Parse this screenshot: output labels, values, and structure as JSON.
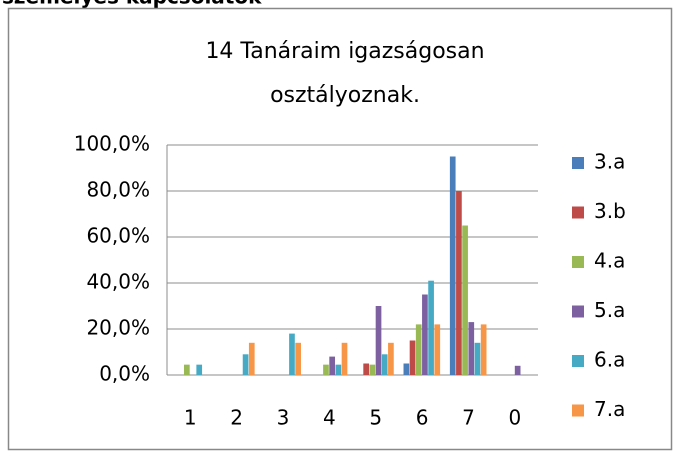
{
  "header": "személyes kapcsolatok",
  "chart_data": {
    "type": "bar",
    "title": [
      "14 Tanáraim igazságosan",
      "osztályoznak."
    ],
    "categories": [
      "1",
      "2",
      "3",
      "4",
      "5",
      "6",
      "7",
      "0"
    ],
    "series": [
      {
        "name": "3.a",
        "color": "#4a7ebb",
        "values": [
          0,
          0,
          0,
          0,
          0,
          5,
          95,
          0
        ]
      },
      {
        "name": "3.b",
        "color": "#be4b48",
        "values": [
          0,
          0,
          0,
          0,
          5,
          15,
          80,
          0
        ]
      },
      {
        "name": "4.a",
        "color": "#98b954",
        "values": [
          4.5,
          0,
          0,
          4.5,
          4.5,
          22,
          65,
          0
        ]
      },
      {
        "name": "5.a",
        "color": "#7d60a0",
        "values": [
          0,
          0,
          0,
          8,
          30,
          35,
          23,
          4
        ]
      },
      {
        "name": "6.a",
        "color": "#46aac5",
        "values": [
          4.5,
          9,
          18,
          4.5,
          9,
          41,
          14,
          0
        ]
      },
      {
        "name": "7.a",
        "color": "#f79646",
        "values": [
          0,
          14,
          14,
          14,
          14,
          22,
          22,
          0
        ]
      }
    ],
    "ylim": [
      0,
      100
    ],
    "yticks": [
      {
        "value": 0,
        "label": "0,0%"
      },
      {
        "value": 20,
        "label": "20,0%"
      },
      {
        "value": 40,
        "label": "40,0%"
      },
      {
        "value": 60,
        "label": "60,0%"
      },
      {
        "value": 80,
        "label": "80,0%"
      },
      {
        "value": 100,
        "label": "100,0%"
      }
    ],
    "grid": true,
    "legend": "right"
  }
}
